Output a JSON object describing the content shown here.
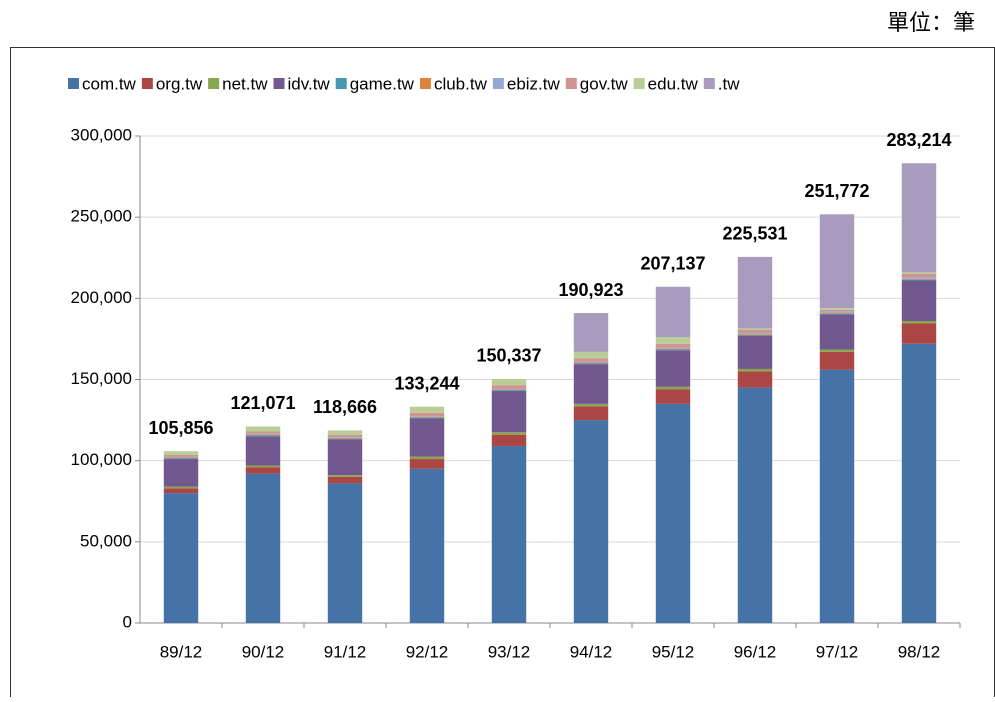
{
  "unit": "單位：筆",
  "chart_data": {
    "type": "stacked_bar",
    "categories": [
      "89/12",
      "90/12",
      "91/12",
      "92/12",
      "93/12",
      "94/12",
      "95/12",
      "96/12",
      "97/12",
      "98/12"
    ],
    "series": [
      {
        "name": "com.tw",
        "color": "#4572a7",
        "values": [
          80000,
          92000,
          86000,
          95000,
          109000,
          125000,
          135000,
          145000,
          156000,
          172000
        ]
      },
      {
        "name": "org.tw",
        "color": "#aa4643",
        "values": [
          3000,
          4000,
          4000,
          6000,
          7000,
          8500,
          9000,
          10000,
          11000,
          12500
        ]
      },
      {
        "name": "net.tw",
        "color": "#89a54e",
        "values": [
          1000,
          1000,
          1000,
          1500,
          1500,
          1500,
          1500,
          1500,
          1500,
          1500
        ]
      },
      {
        "name": "idv.tw",
        "color": "#71588f",
        "values": [
          17000,
          18000,
          22000,
          23500,
          25500,
          24500,
          22500,
          20500,
          21500,
          25000
        ]
      },
      {
        "name": "game.tw",
        "color": "#4198af",
        "values": [
          500,
          500,
          500,
          500,
          500,
          500,
          500,
          500,
          500,
          500
        ]
      },
      {
        "name": "club.tw",
        "color": "#db843d",
        "values": [
          500,
          500,
          500,
          500,
          500,
          500,
          500,
          500,
          500,
          500
        ]
      },
      {
        "name": "ebiz.tw",
        "color": "#93a9cf",
        "values": [
          500,
          500,
          500,
          500,
          500,
          500,
          500,
          500,
          1000,
          1000
        ]
      },
      {
        "name": "gov.tw",
        "color": "#d19392",
        "values": [
          1000,
          1500,
          1500,
          2000,
          2000,
          2000,
          2500,
          2000,
          1000,
          2000
        ]
      },
      {
        "name": "edu.tw",
        "color": "#b9cd96",
        "values": [
          2356,
          3071,
          2666,
          3744,
          3837,
          4000,
          4000,
          1000,
          1000,
          1000
        ]
      },
      {
        "name": ".tw",
        "color": "#a99bbd",
        "values": [
          0,
          0,
          0,
          0,
          0,
          23923,
          31137,
          44031,
          57772,
          67214
        ]
      }
    ],
    "totals": [
      105856,
      121071,
      118666,
      133244,
      150337,
      190923,
      207137,
      225531,
      251772,
      283214
    ],
    "total_labels": [
      "105,856",
      "121,071",
      "118,666",
      "133,244",
      "150,337",
      "190,923",
      "207,137",
      "225,531",
      "251,772",
      "283,214"
    ],
    "ylim": [
      0,
      300000
    ],
    "yticks": [
      0,
      {
        "value": 50000,
        "label": "50,000"
      },
      {
        "value": 100000,
        "label": "100,000"
      },
      {
        "value": 150000,
        "label": "150,000"
      },
      {
        "value": 200000,
        "label": "200,000"
      },
      {
        "value": 250000,
        "label": "250,000"
      },
      {
        "value": 300000,
        "label": "300,000"
      }
    ],
    "grid": true,
    "legend": "top"
  }
}
